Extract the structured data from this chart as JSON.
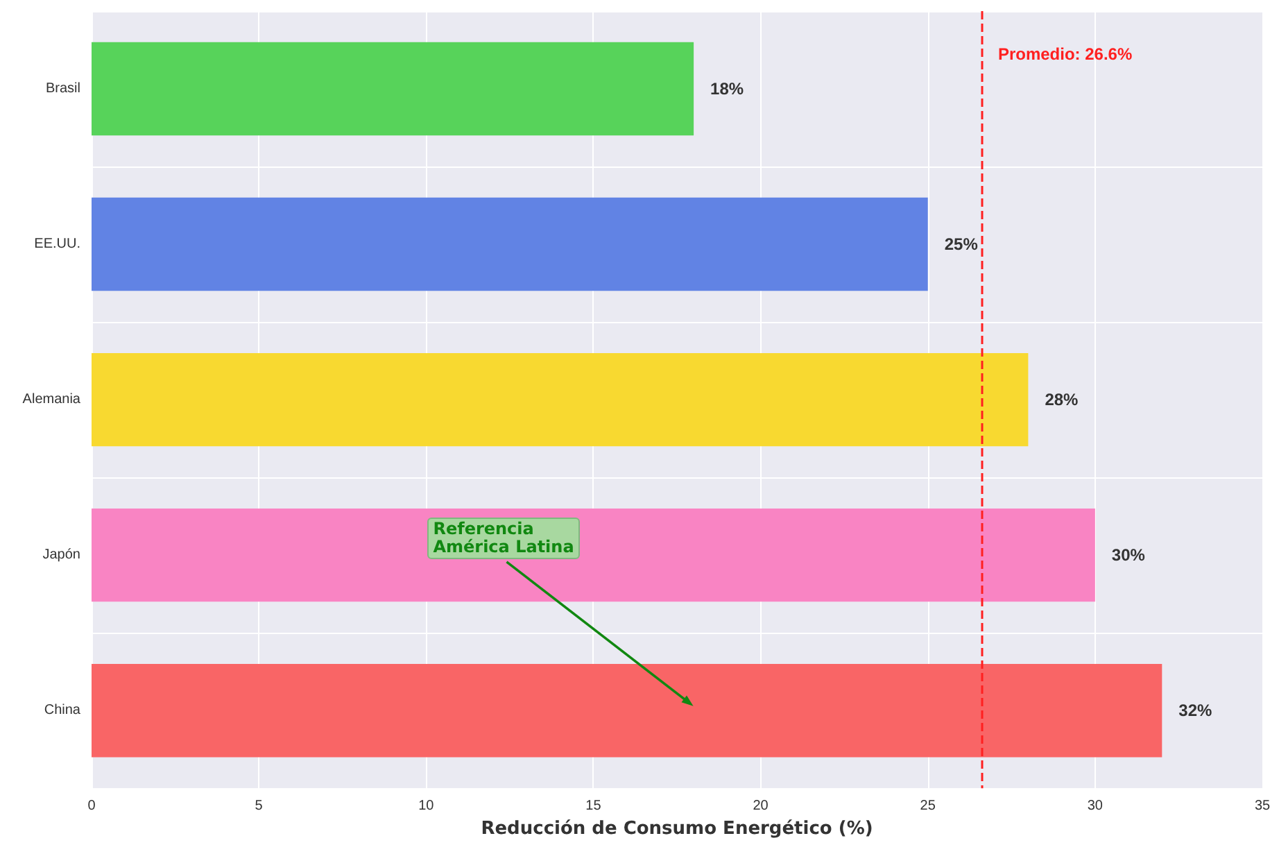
{
  "chart_data": {
    "type": "bar",
    "orientation": "horizontal",
    "xlabel": "Reducción de Consumo Energético (%)",
    "categories": [
      "Brasil",
      "EE.UU.",
      "Alemania",
      "Japón",
      "China"
    ],
    "values": [
      18,
      25,
      28,
      30,
      32
    ],
    "colors": [
      "#57d35a",
      "#6183e4",
      "#f8d930",
      "#f984c3",
      "#f96566"
    ],
    "value_labels": [
      "18%",
      "25%",
      "28%",
      "30%",
      "32%"
    ],
    "xlim": [
      0,
      35
    ],
    "xticks": [
      0,
      5,
      10,
      15,
      20,
      25,
      30,
      35
    ],
    "grid": true,
    "ref_lines": [
      {
        "axis": "x",
        "value": 26.6,
        "label": "Promedio: 26.6%",
        "color": "#ff2020",
        "line_style": "dashed"
      }
    ],
    "annotations": [
      "Referencia\nAmérica Latina"
    ]
  }
}
